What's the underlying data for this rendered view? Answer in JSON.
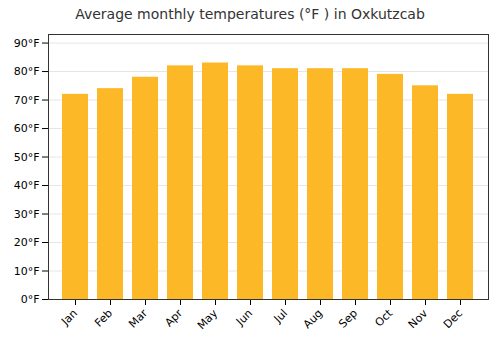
{
  "chart_data": {
    "type": "bar",
    "title": "Average monthly temperatures (°F ) in Oxkutzcab",
    "categories": [
      "Jan",
      "Feb",
      "Mar",
      "Apr",
      "May",
      "Jun",
      "Jul",
      "Aug",
      "Sep",
      "Oct",
      "Nov",
      "Dec"
    ],
    "values": [
      72,
      74,
      78,
      82,
      83,
      82,
      81,
      81,
      81,
      79,
      75,
      72
    ],
    "color": "#FDB827",
    "ylim": [
      0,
      93
    ],
    "yticks": [
      {
        "value": 0,
        "label": "0°F"
      },
      {
        "value": 10,
        "label": "10°F"
      },
      {
        "value": 20,
        "label": "20°F"
      },
      {
        "value": 30,
        "label": "30°F"
      },
      {
        "value": 40,
        "label": "40°F"
      },
      {
        "value": 50,
        "label": "50°F"
      },
      {
        "value": 60,
        "label": "60°F"
      },
      {
        "value": 70,
        "label": "70°F"
      },
      {
        "value": 80,
        "label": "80°F"
      },
      {
        "value": 90,
        "label": "90°F"
      }
    ],
    "grid": true
  }
}
